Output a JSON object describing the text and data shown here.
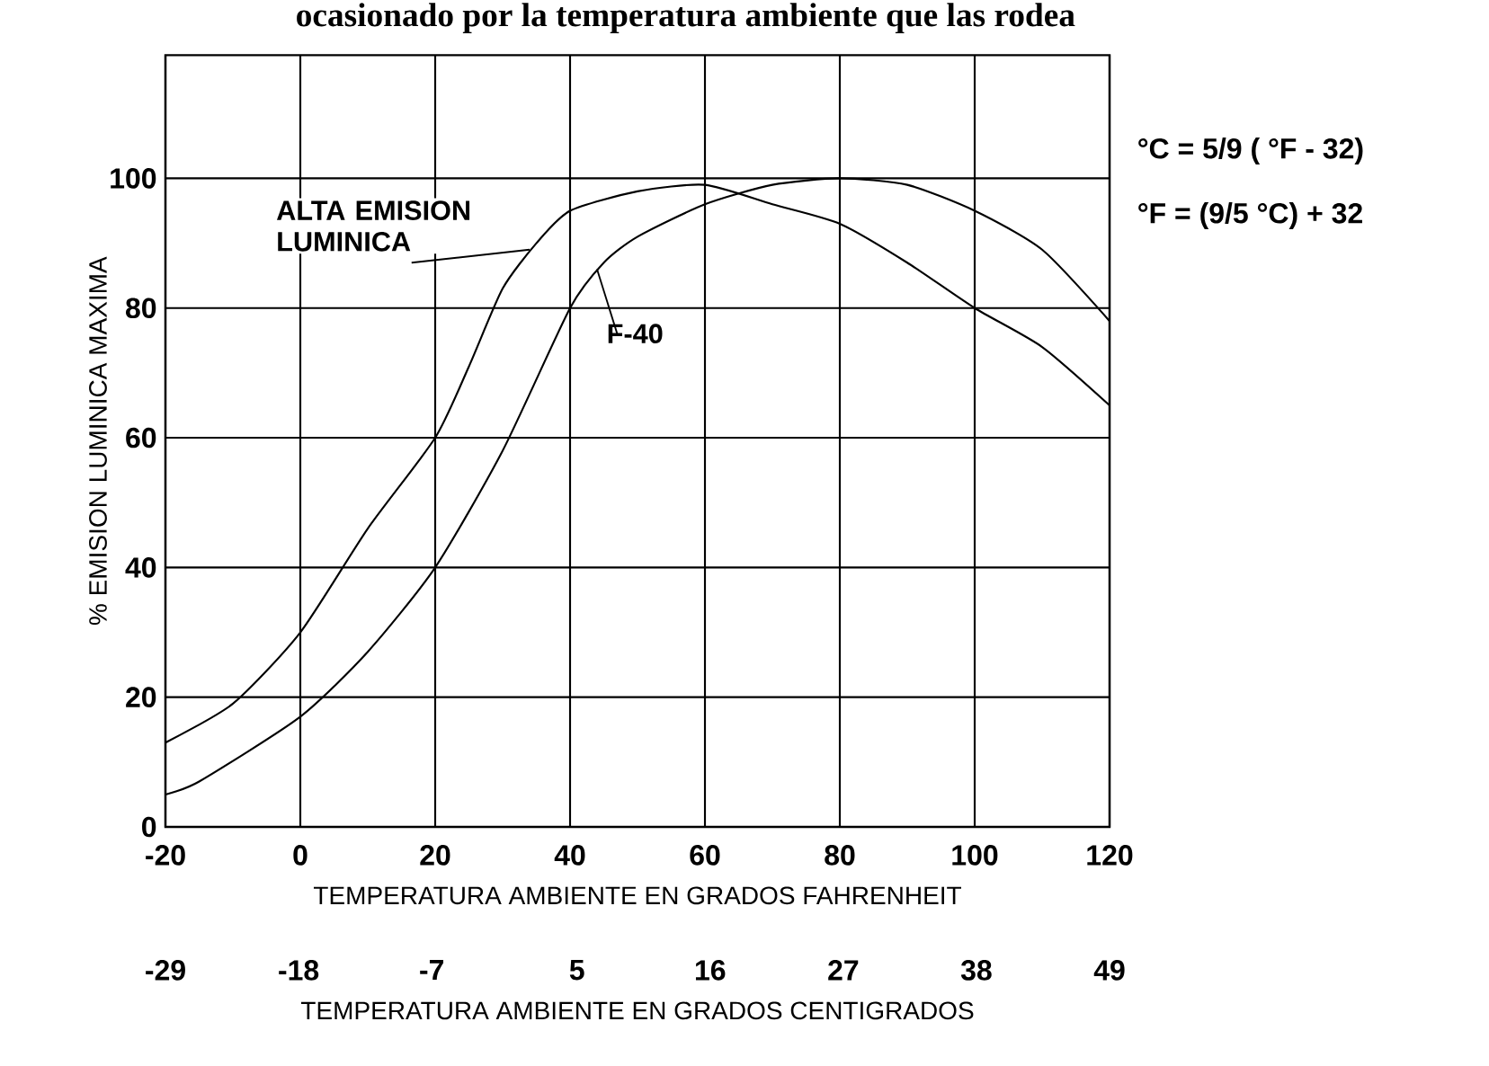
{
  "chart_data": {
    "type": "line",
    "title": "ocasionado por la temperatura ambiente que las rodea",
    "xlabel": "TEMPERATURA AMBIENTE EN GRADOS FAHRENHEIT",
    "ylabel": "% EMISION LUMINICA MAXIMA",
    "x2label": "TEMPERATURA AMBIENTE EN GRADOS CENTIGRADOS",
    "xlim": [
      -20,
      120
    ],
    "xticks": [
      -20,
      0,
      20,
      40,
      60,
      80,
      100,
      120
    ],
    "ylim": [
      0,
      119
    ],
    "yticks": [
      0,
      20,
      40,
      60,
      80,
      100
    ],
    "x2lim": [
      -29,
      49
    ],
    "x2ticks": [
      -29,
      -18,
      -7,
      5,
      16,
      27,
      38,
      49
    ],
    "grid": true,
    "annotations": [
      "°C = 5/9 ( °F - 32)",
      "°F = (9/5 °C) + 32"
    ],
    "series": [
      {
        "name": "ALTA EMISION LUMINICA",
        "color": "#000000",
        "x": [
          -20,
          -10,
          0,
          10,
          20,
          25,
          30,
          35,
          40,
          50,
          60,
          70,
          80,
          90,
          100,
          110,
          120
        ],
        "values": [
          13,
          19,
          30,
          46,
          60,
          71,
          83,
          90,
          95,
          98,
          99,
          96,
          93,
          87,
          80,
          74,
          65
        ]
      },
      {
        "name": "F-40",
        "color": "#000000",
        "x": [
          -20,
          -15,
          0,
          10,
          20,
          30,
          40,
          45,
          50,
          60,
          70,
          80,
          90,
          100,
          110,
          120
        ],
        "values": [
          5,
          7,
          17,
          27,
          40,
          58,
          80,
          87,
          91,
          96,
          99,
          100,
          99,
          95,
          89,
          78
        ]
      }
    ]
  }
}
